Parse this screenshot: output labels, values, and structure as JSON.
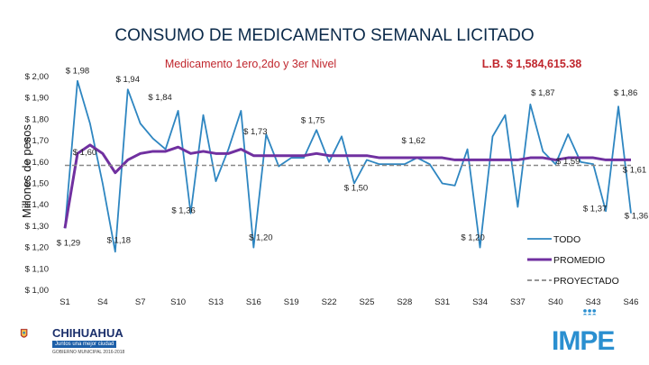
{
  "chart_data": {
    "type": "line",
    "title": "CONSUMO DE MEDICAMENTO SEMANAL LICITADO",
    "subtitle_left": "Medicamento 1ero,2do y 3er Nivel",
    "subtitle_right": "L.B. $ 1,584,615.38",
    "ylabel": "Millones de pesos",
    "ylim": [
      1.0,
      2.0
    ],
    "yticks": [
      "$ 1,00",
      "$ 1,10",
      "$ 1,20",
      "$ 1,30",
      "$ 1,40",
      "$ 1,50",
      "$ 1,60",
      "$ 1,70",
      "$ 1,80",
      "$ 1,90",
      "$ 2,00"
    ],
    "xticks": [
      "S1",
      "S4",
      "S7",
      "S10",
      "S13",
      "S16",
      "S19",
      "S22",
      "S25",
      "S28",
      "S31",
      "S34",
      "S37",
      "S40",
      "S43",
      "S46"
    ],
    "x": [
      1,
      2,
      3,
      4,
      5,
      6,
      7,
      8,
      9,
      10,
      11,
      12,
      13,
      14,
      15,
      16,
      17,
      18,
      19,
      20,
      21,
      22,
      23,
      24,
      25,
      26,
      27,
      28,
      29,
      30,
      31,
      32,
      33,
      34,
      35,
      36,
      37,
      38,
      39,
      40,
      41,
      42,
      43,
      44,
      45,
      46
    ],
    "series": [
      {
        "name": "TODO",
        "color": "#2e86c1",
        "style": "solid",
        "values": [
          1.29,
          1.98,
          1.78,
          1.5,
          1.18,
          1.94,
          1.78,
          1.71,
          1.66,
          1.84,
          1.36,
          1.82,
          1.51,
          1.66,
          1.84,
          1.2,
          1.73,
          1.58,
          1.62,
          1.62,
          1.75,
          1.6,
          1.72,
          1.5,
          1.61,
          1.59,
          1.59,
          1.59,
          1.62,
          1.59,
          1.5,
          1.49,
          1.66,
          1.2,
          1.72,
          1.82,
          1.39,
          1.87,
          1.65,
          1.59,
          1.73,
          1.6,
          1.59,
          1.37,
          1.86,
          1.36
        ]
      },
      {
        "name": "PROMEDIO",
        "color": "#7030a0",
        "style": "solid",
        "values": [
          1.29,
          1.64,
          1.68,
          1.64,
          1.55,
          1.61,
          1.64,
          1.65,
          1.65,
          1.67,
          1.64,
          1.65,
          1.64,
          1.64,
          1.66,
          1.63,
          1.63,
          1.63,
          1.63,
          1.63,
          1.64,
          1.63,
          1.63,
          1.63,
          1.63,
          1.62,
          1.62,
          1.62,
          1.62,
          1.62,
          1.62,
          1.61,
          1.61,
          1.61,
          1.61,
          1.61,
          1.61,
          1.62,
          1.62,
          1.61,
          1.62,
          1.62,
          1.62,
          1.61,
          1.61,
          1.61
        ]
      },
      {
        "name": "PROYECTADO",
        "color": "#888888",
        "style": "dashed",
        "values": [
          1.584615,
          1.584615,
          1.584615,
          1.584615,
          1.584615,
          1.584615,
          1.584615,
          1.584615,
          1.584615,
          1.584615,
          1.584615,
          1.584615,
          1.584615,
          1.584615,
          1.584615,
          1.584615,
          1.584615,
          1.584615,
          1.584615,
          1.584615,
          1.584615,
          1.584615,
          1.584615,
          1.584615,
          1.584615,
          1.584615,
          1.584615,
          1.584615,
          1.584615,
          1.584615,
          1.584615,
          1.584615,
          1.584615,
          1.584615,
          1.584615,
          1.584615,
          1.584615,
          1.584615,
          1.584615,
          1.584615,
          1.584615,
          1.584615,
          1.584615,
          1.584615,
          1.584615,
          1.584615
        ]
      }
    ],
    "annotations": [
      {
        "text": "$ 1,98",
        "x": 2,
        "y": 1.98
      },
      {
        "text": "$ 1,94",
        "x": 6,
        "y": 1.94
      },
      {
        "text": "$ 1,84",
        "x": 10,
        "y": 1.84
      },
      {
        "text": "$ 1,87",
        "x": 38,
        "y": 1.87
      },
      {
        "text": "$ 1,86",
        "x": 45,
        "y": 1.86
      },
      {
        "text": "$ 1,73",
        "x": 17,
        "y": 1.73
      },
      {
        "text": "$ 1,75",
        "x": 21,
        "y": 1.75
      },
      {
        "text": "$ 1,62",
        "x": 29,
        "y": 1.62
      },
      {
        "text": "$ 1,59",
        "x": 40,
        "y": 1.59
      },
      {
        "text": "$ 1,61",
        "x": 46,
        "y": 1.61
      },
      {
        "text": "$ 1,60",
        "x": 2,
        "y": 1.6
      },
      {
        "text": "$ 1,50",
        "x": 24,
        "y": 1.5
      },
      {
        "text": "$ 1,36",
        "x": 11,
        "y": 1.36
      },
      {
        "text": "$ 1,37",
        "x": 44,
        "y": 1.37
      },
      {
        "text": "$ 1,36",
        "x": 46,
        "y": 1.36
      },
      {
        "text": "$ 1,29",
        "x": 1,
        "y": 1.29
      },
      {
        "text": "$ 1,18",
        "x": 5,
        "y": 1.18
      },
      {
        "text": "$ 1,20",
        "x": 16,
        "y": 1.2
      },
      {
        "text": "$ 1,20",
        "x": 34,
        "y": 1.2
      }
    ],
    "legend": {
      "position": "right",
      "entries": [
        "TODO",
        "PROMEDIO",
        "PROYECTADO"
      ]
    },
    "grid": false
  },
  "logos": {
    "left_main": "CHIHUAHUA",
    "left_sub": "Juntos una mejor ciudad",
    "left_sub2": "GOBIERNO MUNICIPAL 2016-2018",
    "right_text": "IMPE"
  }
}
